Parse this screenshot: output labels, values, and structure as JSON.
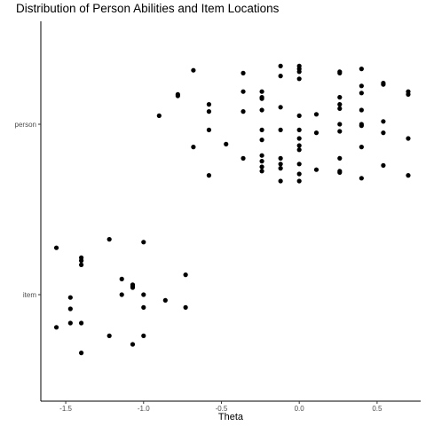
{
  "chart_data": {
    "type": "scatter",
    "title": "Distribution of Person Abilities and Item Locations",
    "xlabel": "Theta",
    "ylabel": "",
    "xlim": [
      -1.66,
      0.78
    ],
    "x_ticks": [
      -1.5,
      -1.0,
      -0.5,
      0.0,
      0.5
    ],
    "x_tick_labels": [
      "-1.5",
      "-1.0",
      "-0.5",
      "0.0",
      "0.5"
    ],
    "categories": [
      "item",
      "person"
    ],
    "grid": false,
    "legend": "none",
    "point_color": "#000000",
    "series": [
      {
        "category": "person",
        "points": [
          [
            -0.68,
            0.38
          ],
          [
            -0.78,
            0.2
          ],
          [
            -0.78,
            0.21
          ],
          [
            -0.9,
            0.06
          ],
          [
            -0.58,
            0.14
          ],
          [
            -0.58,
            0.09
          ],
          [
            -0.58,
            -0.04
          ],
          [
            -0.68,
            -0.16
          ],
          [
            -0.47,
            -0.14
          ],
          [
            -0.58,
            -0.36
          ],
          [
            -0.36,
            0.36
          ],
          [
            -0.36,
            0.23
          ],
          [
            -0.36,
            0.09
          ],
          [
            -0.36,
            -0.24
          ],
          [
            -0.24,
            0.23
          ],
          [
            -0.24,
            0.19
          ],
          [
            -0.24,
            0.18
          ],
          [
            -0.24,
            0.1
          ],
          [
            -0.24,
            -0.04
          ],
          [
            -0.24,
            -0.11
          ],
          [
            -0.24,
            -0.22
          ],
          [
            -0.24,
            -0.26
          ],
          [
            -0.24,
            -0.3
          ],
          [
            -0.24,
            -0.33
          ],
          [
            -0.12,
            0.41
          ],
          [
            -0.12,
            0.34
          ],
          [
            -0.12,
            0.12
          ],
          [
            -0.12,
            -0.04
          ],
          [
            -0.12,
            -0.24
          ],
          [
            -0.12,
            -0.28
          ],
          [
            -0.12,
            -0.31
          ],
          [
            -0.12,
            -0.4
          ],
          [
            0.0,
            0.41
          ],
          [
            0.0,
            0.39
          ],
          [
            0.0,
            0.37
          ],
          [
            0.0,
            0.32
          ],
          [
            0.0,
            0.06
          ],
          [
            0.0,
            -0.04
          ],
          [
            0.0,
            -0.1
          ],
          [
            0.0,
            -0.15
          ],
          [
            0.0,
            -0.18
          ],
          [
            0.0,
            -0.28
          ],
          [
            0.0,
            -0.35
          ],
          [
            0.0,
            -0.4
          ],
          [
            0.11,
            0.07
          ],
          [
            0.11,
            -0.06
          ],
          [
            0.11,
            -0.32
          ],
          [
            0.26,
            0.37
          ],
          [
            0.26,
            0.36
          ],
          [
            0.26,
            0.19
          ],
          [
            0.26,
            0.14
          ],
          [
            0.26,
            0.11
          ],
          [
            0.26,
            0.0
          ],
          [
            0.26,
            -0.05
          ],
          [
            0.26,
            -0.24
          ],
          [
            0.26,
            -0.33
          ],
          [
            0.26,
            -0.34
          ],
          [
            0.4,
            0.39
          ],
          [
            0.4,
            0.27
          ],
          [
            0.4,
            0.22
          ],
          [
            0.4,
            0.1
          ],
          [
            0.4,
            0.0
          ],
          [
            0.4,
            -0.01
          ],
          [
            0.4,
            -0.16
          ],
          [
            0.4,
            -0.38
          ],
          [
            0.54,
            0.29
          ],
          [
            0.54,
            0.28
          ],
          [
            0.54,
            0.02
          ],
          [
            0.54,
            -0.06
          ],
          [
            0.54,
            -0.29
          ],
          [
            0.7,
            0.23
          ],
          [
            0.7,
            0.21
          ],
          [
            0.7,
            -0.1
          ],
          [
            0.7,
            -0.36
          ]
        ]
      },
      {
        "category": "item",
        "points": [
          [
            -1.56,
            0.33
          ],
          [
            -1.4,
            0.26
          ],
          [
            -1.4,
            0.24
          ],
          [
            -1.4,
            0.21
          ],
          [
            -1.22,
            0.39
          ],
          [
            -1.0,
            0.37
          ],
          [
            -1.14,
            0.11
          ],
          [
            -1.07,
            0.07
          ],
          [
            -1.07,
            0.06
          ],
          [
            -1.07,
            0.05
          ],
          [
            -1.14,
            0.0
          ],
          [
            -1.0,
            0.0
          ],
          [
            -0.86,
            -0.04
          ],
          [
            -0.73,
            0.14
          ],
          [
            -1.47,
            -0.02
          ],
          [
            -1.47,
            -0.1
          ],
          [
            -1.0,
            -0.09
          ],
          [
            -0.73,
            -0.09
          ],
          [
            -1.47,
            -0.2
          ],
          [
            -1.4,
            -0.2
          ],
          [
            -1.56,
            -0.23
          ],
          [
            -1.22,
            -0.29
          ],
          [
            -1.0,
            -0.29
          ],
          [
            -1.07,
            -0.35
          ],
          [
            -1.4,
            -0.41
          ]
        ]
      }
    ]
  }
}
